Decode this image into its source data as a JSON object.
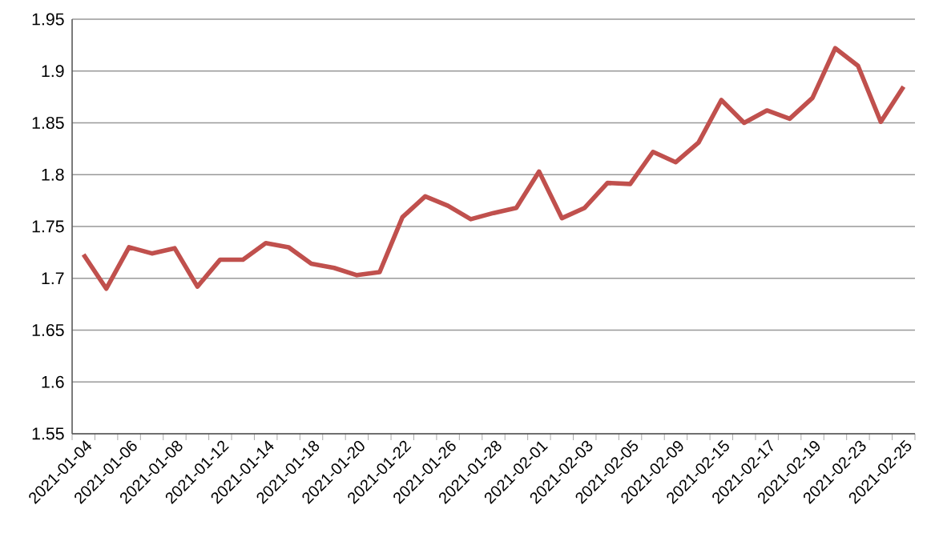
{
  "chart_data": {
    "type": "line",
    "categories": [
      "2021-01-04",
      null,
      "2021-01-06",
      null,
      "2021-01-08",
      null,
      "2021-01-12",
      null,
      "2021-01-14",
      null,
      "2021-01-18",
      null,
      "2021-01-20",
      null,
      "2021-01-22",
      null,
      "2021-01-26",
      null,
      "2021-01-28",
      null,
      "2021-02-01",
      null,
      "2021-02-03",
      null,
      "2021-02-05",
      null,
      "2021-02-09",
      null,
      "2021-02-15",
      null,
      "2021-02-17",
      null,
      "2021-02-19",
      null,
      "2021-02-23",
      null,
      "2021-02-25"
    ],
    "series": [
      {
        "color": "#c0504d",
        "values": [
          1.723,
          1.69,
          1.73,
          1.724,
          1.729,
          1.692,
          1.718,
          1.718,
          1.734,
          1.73,
          1.714,
          1.71,
          1.703,
          1.706,
          1.759,
          1.779,
          1.77,
          1.757,
          1.763,
          1.768,
          1.803,
          1.758,
          1.768,
          1.792,
          1.791,
          1.822,
          1.812,
          1.831,
          1.872,
          1.85,
          1.862,
          1.854,
          1.874,
          1.922,
          1.905,
          1.851,
          1.885
        ]
      }
    ],
    "ylim": [
      1.55,
      1.95
    ],
    "yticks": [
      1.55,
      1.6,
      1.65,
      1.7,
      1.75,
      1.8,
      1.85,
      1.9,
      1.95
    ],
    "grid": "y",
    "marker": "none",
    "line_style": "solid"
  }
}
